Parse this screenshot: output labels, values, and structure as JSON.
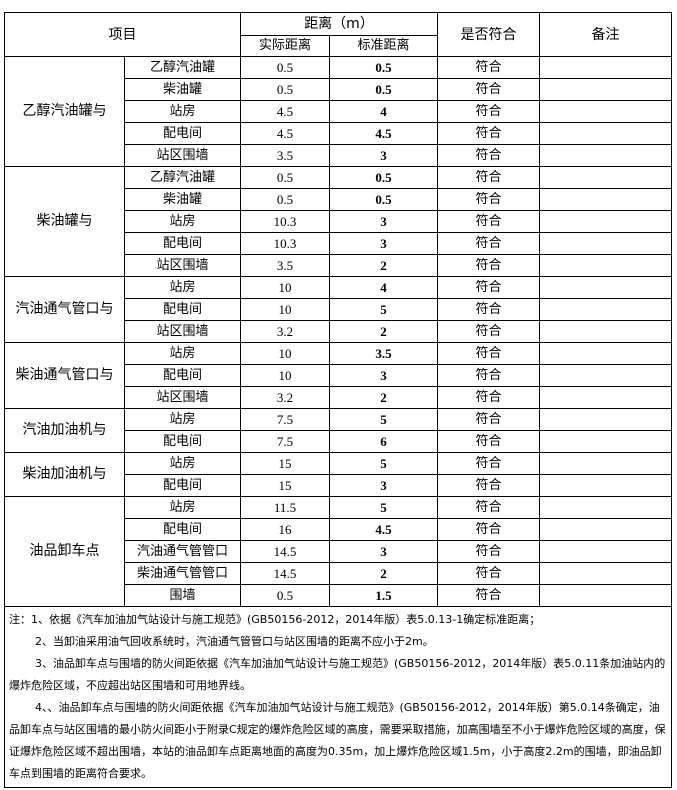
{
  "header": {
    "item": "项目",
    "distance": "距离（m）",
    "actual": "实际距离",
    "standard": "标准距离",
    "compliant": "是否符合",
    "remarks": "备注"
  },
  "groups": [
    {
      "name": "乙醇汽油罐与",
      "rows": [
        {
          "target": "乙醇汽油罐",
          "actual": "0.5",
          "standard": "0.5",
          "result": "符合",
          "remark": ""
        },
        {
          "target": "柴油罐",
          "actual": "0.5",
          "standard": "0.5",
          "result": "符合",
          "remark": ""
        },
        {
          "target": "站房",
          "actual": "4.5",
          "standard": "4",
          "result": "符合",
          "remark": ""
        },
        {
          "target": "配电间",
          "actual": "4.5",
          "standard": "4.5",
          "result": "符合",
          "remark": ""
        },
        {
          "target": "站区围墙",
          "actual": "3.5",
          "standard": "3",
          "result": "符合",
          "remark": ""
        }
      ]
    },
    {
      "name": "柴油罐与",
      "rows": [
        {
          "target": "乙醇汽油罐",
          "actual": "0.5",
          "standard": "0.5",
          "result": "符合",
          "remark": ""
        },
        {
          "target": "柴油罐",
          "actual": "0.5",
          "standard": "0.5",
          "result": "符合",
          "remark": ""
        },
        {
          "target": "站房",
          "actual": "10.3",
          "standard": "3",
          "result": "符合",
          "remark": ""
        },
        {
          "target": "配电间",
          "actual": "10.3",
          "standard": "3",
          "result": "符合",
          "remark": ""
        },
        {
          "target": "站区围墙",
          "actual": "3.5",
          "standard": "2",
          "result": "符合",
          "remark": ""
        }
      ]
    },
    {
      "name": "汽油通气管口与",
      "rows": [
        {
          "target": "站房",
          "actual": "10",
          "standard": "4",
          "result": "符合",
          "remark": ""
        },
        {
          "target": "配电间",
          "actual": "10",
          "standard": "5",
          "result": "符合",
          "remark": ""
        },
        {
          "target": "站区围墙",
          "actual": "3.2",
          "standard": "2",
          "result": "符合",
          "remark": ""
        }
      ]
    },
    {
      "name": "柴油通气管口与",
      "rows": [
        {
          "target": "站房",
          "actual": "10",
          "standard": "3.5",
          "result": "符合",
          "remark": ""
        },
        {
          "target": "配电间",
          "actual": "10",
          "standard": "3",
          "result": "符合",
          "remark": ""
        },
        {
          "target": "站区围墙",
          "actual": "3.2",
          "standard": "2",
          "result": "符合",
          "remark": ""
        }
      ]
    },
    {
      "name": "汽油加油机与",
      "rows": [
        {
          "target": "站房",
          "actual": "7.5",
          "standard": "5",
          "result": "符合",
          "remark": ""
        },
        {
          "target": "配电间",
          "actual": "7.5",
          "standard": "6",
          "result": "符合",
          "remark": ""
        }
      ]
    },
    {
      "name": "柴油加油机与",
      "rows": [
        {
          "target": "站房",
          "actual": "15",
          "standard": "5",
          "result": "符合",
          "remark": ""
        },
        {
          "target": "配电间",
          "actual": "15",
          "standard": "3",
          "result": "符合",
          "remark": ""
        }
      ]
    },
    {
      "name": "油品卸车点",
      "rows": [
        {
          "target": "站房",
          "actual": "11.5",
          "standard": "5",
          "result": "符合",
          "remark": ""
        },
        {
          "target": "配电间",
          "actual": "16",
          "standard": "4.5",
          "result": "符合",
          "remark": ""
        },
        {
          "target": "汽油通气管管口",
          "actual": "14.5",
          "standard": "3",
          "result": "符合",
          "remark": ""
        },
        {
          "target": "柴油通气管管口",
          "actual": "14.5",
          "standard": "2",
          "result": "符合",
          "remark": ""
        },
        {
          "target": "围墙",
          "actual": "0.5",
          "standard": "1.5",
          "result": "符合",
          "remark": ""
        }
      ]
    }
  ],
  "notes": [
    "注：1、依据《汽车加油加气站设计与施工规范》(GB50156-2012，2014年版）表5.0.13-1确定标准距离；",
    "2、当卸油采用油气回收系统时，汽油通气管管口与站区围墙的距离不应小于2m。",
    "3、油品卸车点与围墙的防火间距依据《汽车加油加气站设计与施工规范》(GB50156-2012，2014年版）表5.0.11条加油站内的爆炸危险区域，不应超出站区围墙和可用地界线。",
    "4、、油品卸车点与围墙的防火间距依据《汽车加油加气站设计与施工规范》(GB50156-2012，2014年版）第5.0.14条确定，油品卸车点与站区围墙的最小防火间距小于附录C规定的爆炸危险区域的高度，需要采取措施，加高围墙至不小于爆炸危险区域的高度，保证爆炸危险区域不超出围墙，本站的油品卸车点距离地面的高度为0.35m，加上爆炸危险区域1.5m，小于高度2.2m的围墙，即油品卸车点到围墙的距离符合要求。"
  ]
}
